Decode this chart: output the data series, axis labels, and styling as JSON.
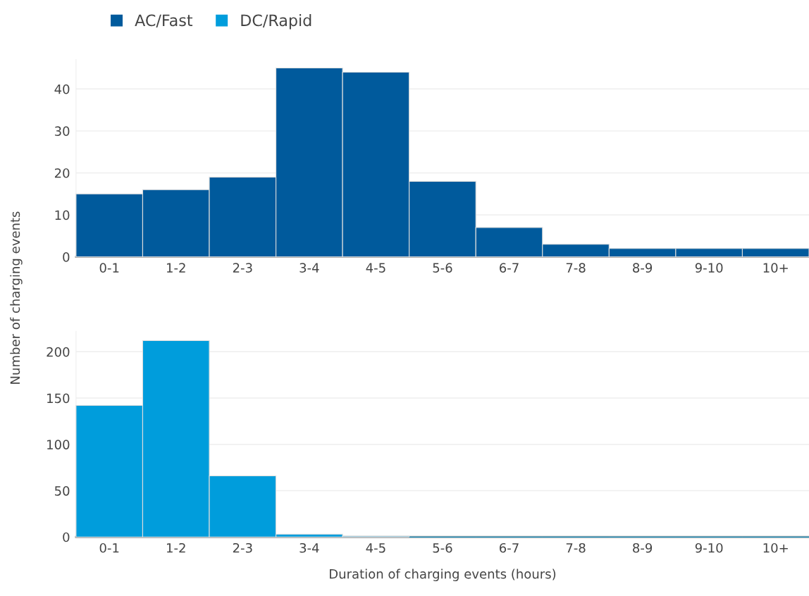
{
  "chart_data": [
    {
      "type": "bar",
      "categories": [
        "0-1",
        "1-2",
        "2-3",
        "3-4",
        "4-5",
        "5-6",
        "6-7",
        "7-8",
        "8-9",
        "9-10",
        "10+"
      ],
      "series": [
        {
          "name": "AC/Fast",
          "color": "#005a9c",
          "values": [
            15,
            16,
            19,
            45,
            44,
            18,
            7,
            3,
            2,
            2,
            2
          ]
        }
      ],
      "ylim": [
        0,
        47
      ],
      "yticks": [
        0,
        10,
        20,
        30,
        40
      ],
      "grid": "y",
      "legend": "top left",
      "ylabel": "Number of charging events"
    },
    {
      "type": "bar",
      "categories": [
        "0-1",
        "1-2",
        "2-3",
        "3-4",
        "4-5",
        "5-6",
        "6-7",
        "7-8",
        "8-9",
        "9-10",
        "10+"
      ],
      "series": [
        {
          "name": "DC/Rapid",
          "color": "#009ddc",
          "values": [
            142,
            212,
            66,
            3,
            1,
            0,
            0,
            0,
            0,
            0,
            0
          ]
        }
      ],
      "ylim": [
        0,
        222
      ],
      "yticks": [
        0,
        50,
        100,
        150,
        200
      ],
      "grid": "y",
      "xlabel": "Duration of charging events (hours)"
    }
  ]
}
